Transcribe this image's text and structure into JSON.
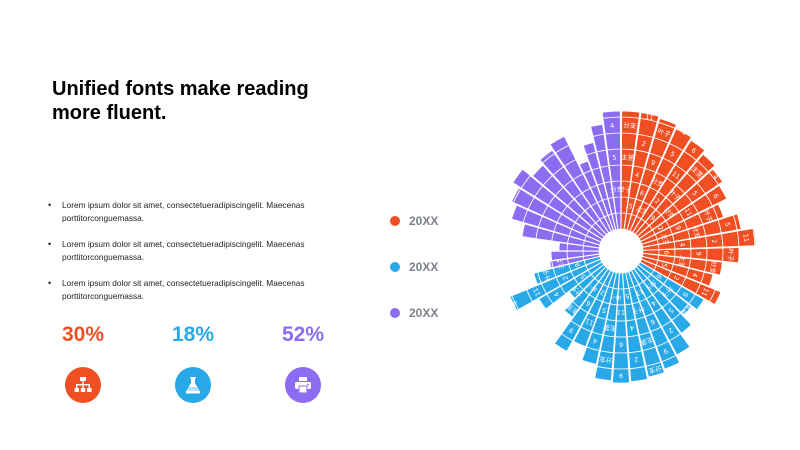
{
  "title": "Unified fonts make reading more fluent.",
  "bullets": [
    "Lorem ipsum dolor sit amet, consectetueradipiscingelit. Maecenas porttitorconguemassa.",
    "Lorem ipsum dolor sit amet, consectetueradipiscingelit. Maecenas porttitorconguemassa.",
    "Lorem ipsum dolor sit amet, consectetueradipiscingelit. Maecenas porttitorconguemassa."
  ],
  "stats": [
    {
      "value": "30%",
      "color": "#f04e23",
      "icon": "org-chart-icon"
    },
    {
      "value": "18%",
      "color": "#29a8e8",
      "icon": "flask-icon"
    },
    {
      "value": "52%",
      "color": "#8c6cf0",
      "icon": "printer-icon"
    }
  ],
  "legend": [
    {
      "label": "20XX",
      "color": "#f04e23"
    },
    {
      "label": "20XX",
      "color": "#29a8e8"
    },
    {
      "label": "20XX",
      "color": "#8c6cf0"
    }
  ],
  "chart_data": {
    "type": "sunburst",
    "title": "",
    "series": [
      {
        "label": "20XX",
        "color": "#f04e23",
        "share": 30
      },
      {
        "label": "20XX",
        "color": "#29a8e8",
        "share": 18
      },
      {
        "label": "20XX",
        "color": "#8c6cf0",
        "share": 52
      }
    ],
    "ring_labels": [
      "叶子",
      "主茎",
      "分支",
      "5",
      "4",
      "2",
      "11",
      "6",
      "9"
    ],
    "legend_position": "left"
  }
}
